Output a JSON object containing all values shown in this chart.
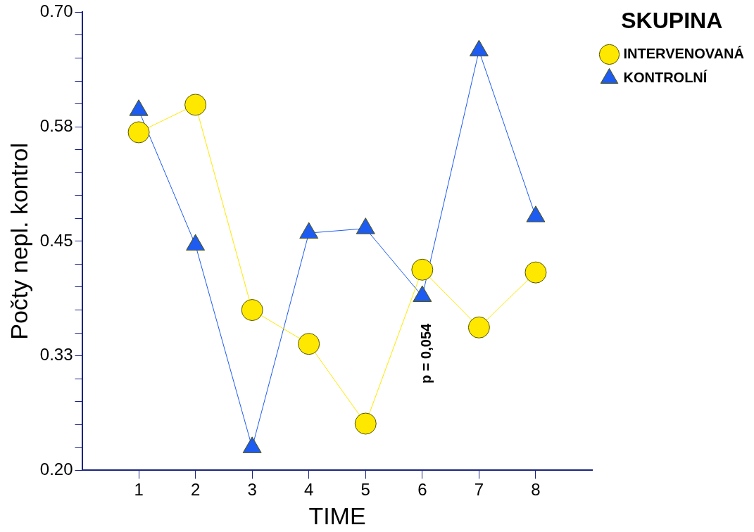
{
  "chart_data": {
    "type": "line",
    "xlabel": "TIME",
    "ylabel": "Počty nepl. kontrol",
    "legend_title": "SKUPINA",
    "legend": "top right",
    "grid": false,
    "x": [
      1,
      2,
      3,
      4,
      5,
      6,
      7,
      8
    ],
    "series": [
      {
        "name": "INTERVENOVANÁ",
        "color": "#ffe800",
        "marker": "circle",
        "values": [
          0.569,
          0.599,
          0.375,
          0.338,
          0.251,
          0.419,
          0.356,
          0.416
        ]
      },
      {
        "name": "KONTROLNÍ",
        "color": "#1e5bf0",
        "marker": "triangle",
        "values": [
          0.593,
          0.446,
          0.225,
          0.459,
          0.464,
          0.39,
          0.658,
          0.477
        ]
      }
    ],
    "xlim": [
      0,
      9
    ],
    "xticks": [
      1,
      2,
      3,
      4,
      5,
      6,
      7,
      8
    ],
    "ylim": [
      0.2,
      0.7
    ],
    "yticks": [
      {
        "value": 0.2,
        "label": "0.20"
      },
      {
        "value": 0.225,
        "label": null
      },
      {
        "value": 0.25,
        "label": null
      },
      {
        "value": 0.275,
        "label": null
      },
      {
        "value": 0.3,
        "label": null
      },
      {
        "value": 0.325,
        "label": "0.33"
      },
      {
        "value": 0.35,
        "label": null
      },
      {
        "value": 0.375,
        "label": null
      },
      {
        "value": 0.4,
        "label": null
      },
      {
        "value": 0.425,
        "label": null
      },
      0.45,
      {
        "value": 0.475,
        "label": null
      },
      {
        "value": 0.5,
        "label": null
      },
      {
        "value": 0.525,
        "label": null
      },
      {
        "value": 0.55,
        "label": null
      },
      {
        "value": 0.575,
        "label": "0.58"
      },
      {
        "value": 0.6,
        "label": null
      },
      {
        "value": 0.625,
        "label": null
      },
      {
        "value": 0.65,
        "label": null
      },
      {
        "value": 0.675,
        "label": null
      },
      {
        "value": 0.7,
        "label": "0.70"
      }
    ],
    "annotations": [
      "p = 0,054"
    ]
  }
}
